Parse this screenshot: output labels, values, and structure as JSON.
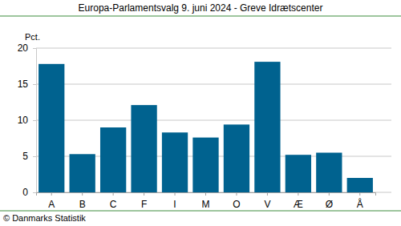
{
  "chart_data": {
    "type": "bar",
    "title": "Europa-Parlamentsvalg 9. juni 2024 - Greve Idrætscenter",
    "y_label": "Pct.",
    "annotations": [
      "© Danmarks Statistik"
    ],
    "categories": [
      "A",
      "B",
      "C",
      "F",
      "I",
      "M",
      "O",
      "V",
      "Æ",
      "Ø",
      "Å"
    ],
    "values": [
      17.8,
      5.3,
      9.0,
      12.1,
      8.3,
      7.6,
      9.4,
      18.1,
      5.2,
      5.5,
      2.0
    ],
    "color": "#00628f",
    "ylim": [
      0,
      20
    ],
    "yticks": [
      0,
      5,
      10,
      15,
      20
    ],
    "grid": true
  }
}
